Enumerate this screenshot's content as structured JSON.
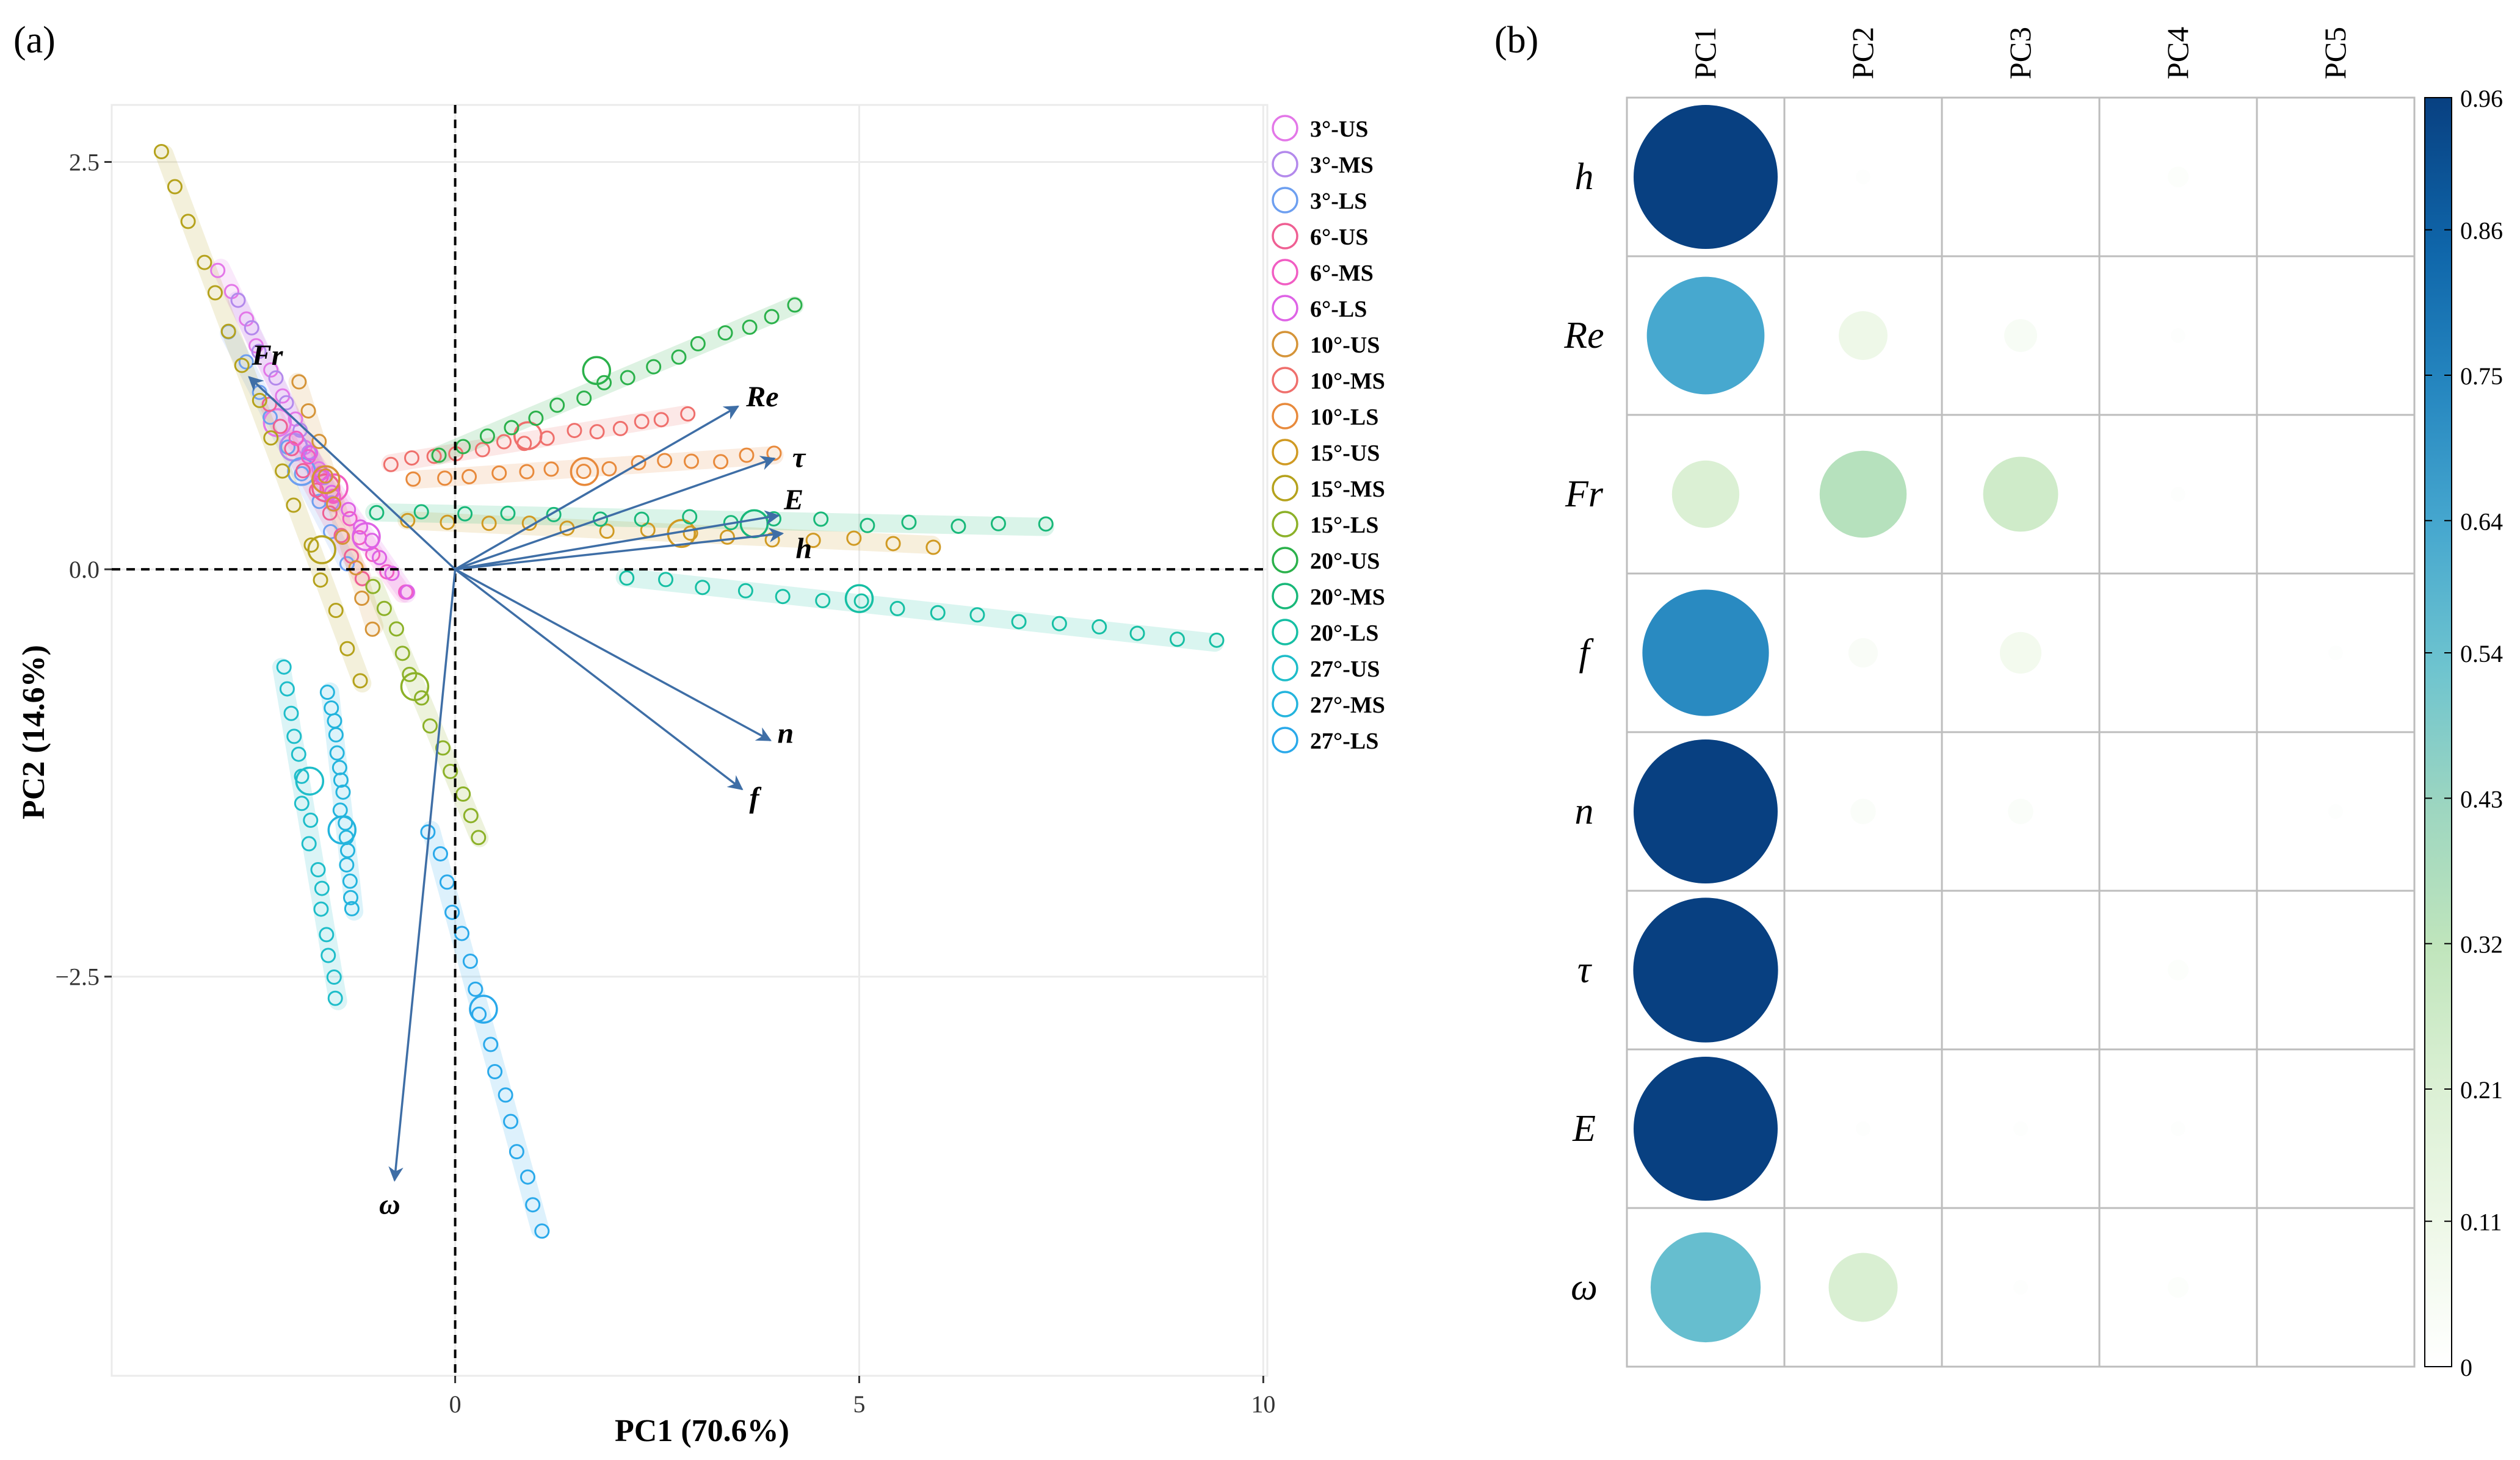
{
  "panel_a": {
    "panel_label": "(a)",
    "chart_data": {
      "type": "biplot",
      "xlabel": "PC1 (70.6%)",
      "ylabel": "PC2 (14.6%)",
      "xlim": [
        -4.25,
        10.05
      ],
      "ylim": [
        -4.95,
        2.85
      ],
      "x_ticks": [
        0,
        5,
        10
      ],
      "y_ticks": [
        2.5,
        0.0,
        -2.5
      ],
      "y_tick_labels": [
        "2.5",
        "0.0",
        "−2.5"
      ],
      "grid": true,
      "legend_position": "right",
      "legend": [
        {
          "label": "3°-US",
          "color": "#e377e8"
        },
        {
          "label": "3°-MS",
          "color": "#b389ec"
        },
        {
          "label": "3°-LS",
          "color": "#6d9ff0"
        },
        {
          "label": "6°-US",
          "color": "#ef5f93"
        },
        {
          "label": "6°-MS",
          "color": "#f15dc3"
        },
        {
          "label": "6°-LS",
          "color": "#de63e6"
        },
        {
          "label": "10°-US",
          "color": "#d59438"
        },
        {
          "label": "10°-MS",
          "color": "#ef6f6c"
        },
        {
          "label": "10°-LS",
          "color": "#e88a3c"
        },
        {
          "label": "15°-US",
          "color": "#d09a23"
        },
        {
          "label": "15°-MS",
          "color": "#b5a21c"
        },
        {
          "label": "15°-LS",
          "color": "#8cb128"
        },
        {
          "label": "20°-US",
          "color": "#2bb14b"
        },
        {
          "label": "20°-MS",
          "color": "#18b879"
        },
        {
          "label": "20°-LS",
          "color": "#16bfa4"
        },
        {
          "label": "27°-US",
          "color": "#1ebdc9"
        },
        {
          "label": "27°-MS",
          "color": "#23b4dd"
        },
        {
          "label": "27°-LS",
          "color": "#2aa9ea"
        }
      ],
      "loadings": [
        {
          "label": "Fr",
          "x": -2.55,
          "y": 1.18
        },
        {
          "label": "Re",
          "x": 3.5,
          "y": 1.0
        },
        {
          "label": "τ",
          "x": 3.95,
          "y": 0.68
        },
        {
          "label": "E",
          "x": 4.0,
          "y": 0.33
        },
        {
          "label": "h",
          "x": 4.05,
          "y": 0.22
        },
        {
          "label": "n",
          "x": 3.9,
          "y": -1.05
        },
        {
          "label": "f",
          "x": 3.55,
          "y": -1.35
        },
        {
          "label": "ω",
          "x": -0.75,
          "y": -3.75
        }
      ],
      "groups": [
        {
          "name": "3°-US",
          "color": "#e377e8",
          "from": [
            -2.9,
            1.85
          ],
          "to": [
            -1.7,
            0.6
          ],
          "centroid": [
            -2.2,
            0.9
          ],
          "n": 9
        },
        {
          "name": "3°-MS",
          "color": "#b389ec",
          "from": [
            -2.7,
            1.65
          ],
          "to": [
            -1.5,
            0.4
          ],
          "centroid": [
            -2.0,
            0.75
          ],
          "n": 9
        },
        {
          "name": "3°-LS",
          "color": "#6d9ff0",
          "from": [
            -2.8,
            1.45
          ],
          "to": [
            -1.35,
            0.05
          ],
          "centroid": [
            -1.9,
            0.6
          ],
          "n": 9
        },
        {
          "name": "6°-US",
          "color": "#ef5f93",
          "from": [
            -2.3,
            1.0
          ],
          "to": [
            -1.15,
            -0.05
          ],
          "centroid": [
            -1.6,
            0.5
          ],
          "n": 9
        },
        {
          "name": "6°-MS",
          "color": "#f15dc3",
          "from": [
            -2.0,
            0.8
          ],
          "to": [
            -0.65,
            -0.15
          ],
          "centroid": [
            -1.5,
            0.5
          ],
          "n": 9
        },
        {
          "name": "6°-LS",
          "color": "#de63e6",
          "from": [
            -1.8,
            0.7
          ],
          "to": [
            -0.6,
            -0.15
          ],
          "centroid": [
            -1.1,
            0.2
          ],
          "n": 9
        },
        {
          "name": "10°-US",
          "color": "#d59438",
          "from": [
            -1.95,
            1.15
          ],
          "to": [
            -1.0,
            -0.35
          ],
          "centroid": [
            -1.6,
            0.55
          ],
          "n": 9
        },
        {
          "name": "10°-MS",
          "color": "#ef6f6c",
          "from": [
            -0.8,
            0.65
          ],
          "to": [
            2.85,
            0.95
          ],
          "centroid": [
            0.9,
            0.82
          ],
          "n": 14
        },
        {
          "name": "10°-LS",
          "color": "#e88a3c",
          "from": [
            -0.5,
            0.55
          ],
          "to": [
            3.95,
            0.7
          ],
          "centroid": [
            1.6,
            0.6
          ],
          "n": 14
        },
        {
          "name": "15°-US",
          "color": "#d09a23",
          "from": [
            -0.6,
            0.3
          ],
          "to": [
            5.9,
            0.15
          ],
          "centroid": [
            2.8,
            0.22
          ],
          "n": 14
        },
        {
          "name": "15°-MS",
          "color": "#b5a21c",
          "from": [
            -3.6,
            2.55
          ],
          "to": [
            -1.15,
            -0.7
          ],
          "centroid": [
            -1.65,
            0.12
          ],
          "n": 16
        },
        {
          "name": "15°-LS",
          "color": "#8cb128",
          "from": [
            -1.0,
            -0.1
          ],
          "to": [
            0.3,
            -1.65
          ],
          "centroid": [
            -0.5,
            -0.72
          ],
          "n": 12
        },
        {
          "name": "20°-US",
          "color": "#2bb14b",
          "from": [
            -0.2,
            0.7
          ],
          "to": [
            4.2,
            1.62
          ],
          "centroid": [
            1.75,
            1.22
          ],
          "n": 16
        },
        {
          "name": "20°-MS",
          "color": "#18b879",
          "from": [
            -1.0,
            0.35
          ],
          "to": [
            7.3,
            0.26
          ],
          "centroid": [
            3.7,
            0.28
          ],
          "n": 16
        },
        {
          "name": "20°-LS",
          "color": "#16bfa4",
          "from": [
            2.1,
            -0.05
          ],
          "to": [
            9.4,
            -0.45
          ],
          "centroid": [
            5.0,
            -0.18
          ],
          "n": 16
        },
        {
          "name": "27°-US",
          "color": "#1ebdc9",
          "from": [
            -2.15,
            -0.6
          ],
          "to": [
            -1.45,
            -2.65
          ],
          "centroid": [
            -1.8,
            -1.3
          ],
          "n": 16
        },
        {
          "name": "27°-MS",
          "color": "#23b4dd",
          "from": [
            -1.55,
            -0.75
          ],
          "to": [
            -1.25,
            -2.1
          ],
          "centroid": [
            -1.4,
            -1.6
          ],
          "n": 16
        },
        {
          "name": "27°-LS",
          "color": "#2aa9ea",
          "from": [
            -0.3,
            -1.6
          ],
          "to": [
            1.05,
            -4.05
          ],
          "centroid": [
            0.35,
            -2.7
          ],
          "n": 16
        }
      ]
    }
  },
  "panel_b": {
    "panel_label": "(b)",
    "chart_data": {
      "type": "heatmap",
      "columns": [
        "PC1",
        "PC2",
        "PC3",
        "PC4",
        "PC5"
      ],
      "rows": [
        "h",
        "Re",
        "Fr",
        "f",
        "n",
        "τ",
        "E",
        "ω"
      ],
      "values": [
        [
          0.96,
          0.01,
          0.0,
          0.02,
          0.0
        ],
        [
          0.64,
          0.11,
          0.05,
          0.01,
          0.0
        ],
        [
          0.21,
          0.35,
          0.26,
          0.01,
          0.0
        ],
        [
          0.74,
          0.04,
          0.08,
          0.0,
          0.01
        ],
        [
          0.96,
          0.03,
          0.03,
          0.0,
          0.01
        ],
        [
          0.97,
          0.0,
          0.0,
          0.02,
          0.0
        ],
        [
          0.96,
          0.01,
          0.01,
          0.01,
          0.0
        ],
        [
          0.56,
          0.22,
          0.01,
          0.02,
          0.0
        ]
      ],
      "colorbar_ticks": [
        "0.96",
        "0.86",
        "0.75",
        "0.64",
        "0.54",
        "0.43",
        "0.32",
        "0.21",
        "0.11",
        "0"
      ],
      "colorbar_range": [
        0,
        0.96
      ]
    }
  }
}
